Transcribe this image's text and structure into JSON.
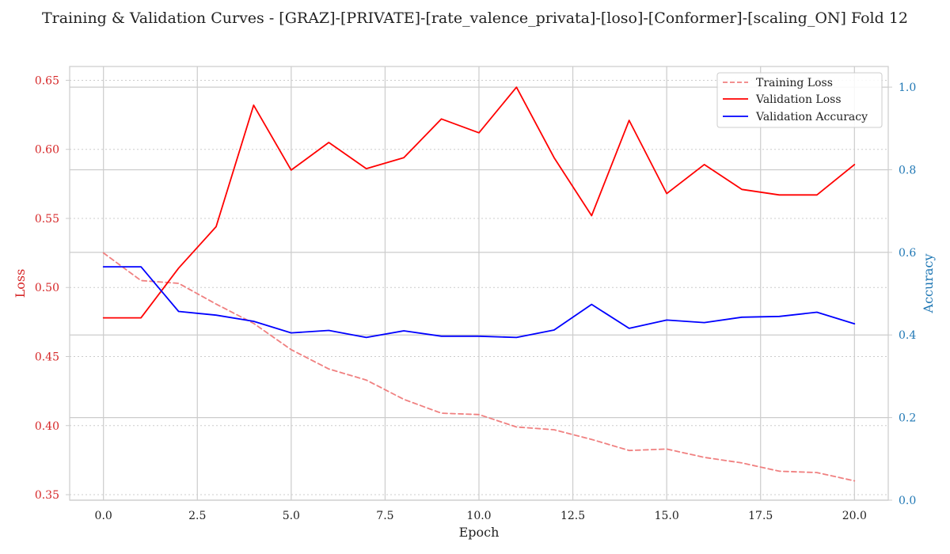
{
  "chart_data": {
    "type": "line",
    "title": "Training & Validation Curves - [GRAZ]-[PRIVATE]-[rate_valence_privata]-[loso]-[Conformer]-[scaling_ON] Fold 12",
    "xlabel": "Epoch",
    "ylabel_left": "Loss",
    "ylabel_right": "Accuracy",
    "xlim": [
      -0.9,
      20.9
    ],
    "ylim_left": [
      0.346,
      0.66
    ],
    "ylim_right": [
      0.0,
      1.05
    ],
    "x_ticks": [
      0,
      2.5,
      5,
      7.5,
      10,
      12.5,
      15,
      17.5,
      20
    ],
    "x_tick_labels": [
      "0.0",
      "2.5",
      "5.0",
      "7.5",
      "10.0",
      "12.5",
      "15.0",
      "17.5",
      "20.0"
    ],
    "y_left_ticks": [
      0.35,
      0.4,
      0.45,
      0.5,
      0.55,
      0.6,
      0.65
    ],
    "y_left_tick_labels": [
      "0.35",
      "0.40",
      "0.45",
      "0.50",
      "0.55",
      "0.60",
      "0.65"
    ],
    "y_right_ticks": [
      0.0,
      0.2,
      0.4,
      0.6,
      0.8,
      1.0
    ],
    "y_right_tick_labels": [
      "0.0",
      "0.2",
      "0.4",
      "0.6",
      "0.8",
      "1.0"
    ],
    "grid": true,
    "legend_position": "top-right",
    "x": [
      0,
      1,
      2,
      3,
      4,
      5,
      6,
      7,
      8,
      9,
      10,
      11,
      12,
      13,
      14,
      15,
      16,
      17,
      18,
      19,
      20
    ],
    "series": [
      {
        "name": "Training Loss",
        "axis": "left",
        "color": "#f08080",
        "style": "dashed",
        "values": [
          0.525,
          0.505,
          0.503,
          0.488,
          0.474,
          0.455,
          0.441,
          0.433,
          0.419,
          0.409,
          0.408,
          0.399,
          0.397,
          0.39,
          0.382,
          0.383,
          0.377,
          0.373,
          0.367,
          0.366,
          0.36
        ]
      },
      {
        "name": "Validation Loss",
        "axis": "left",
        "color": "#ff0000",
        "style": "solid",
        "values": [
          0.478,
          0.478,
          0.514,
          0.544,
          0.632,
          0.585,
          0.605,
          0.586,
          0.594,
          0.622,
          0.612,
          0.645,
          0.594,
          0.552,
          0.621,
          0.568,
          0.589,
          0.571,
          0.567,
          0.567,
          0.589
        ]
      },
      {
        "name": "Validation Accuracy",
        "axis": "right",
        "color": "#0000ff",
        "style": "solid",
        "values": [
          0.565,
          0.565,
          0.457,
          0.448,
          0.433,
          0.405,
          0.411,
          0.394,
          0.41,
          0.397,
          0.397,
          0.394,
          0.412,
          0.474,
          0.416,
          0.436,
          0.43,
          0.443,
          0.445,
          0.455,
          0.427
        ]
      }
    ]
  }
}
